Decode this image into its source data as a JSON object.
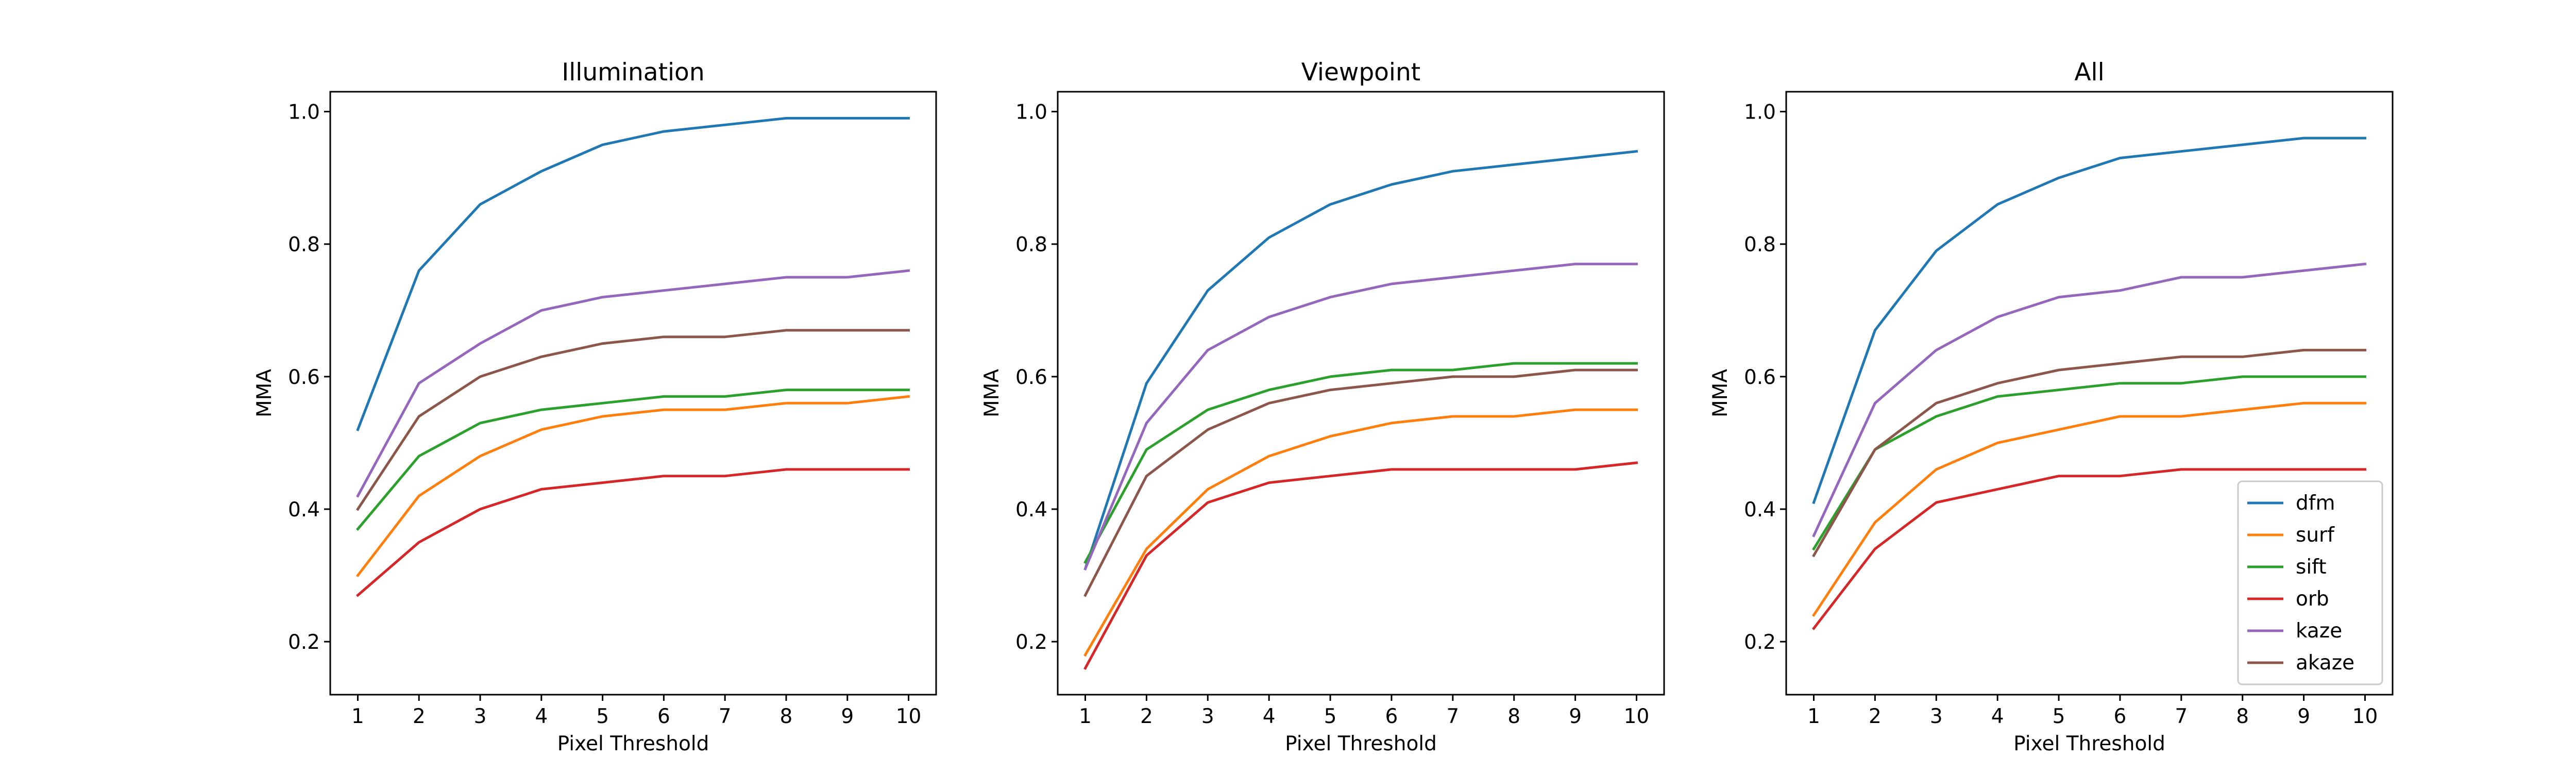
{
  "chart_data": [
    {
      "type": "line",
      "title": "Illumination",
      "xlabel": "Pixel Threshold",
      "ylabel": "MMA",
      "x": [
        1,
        2,
        3,
        4,
        5,
        6,
        7,
        8,
        9,
        10
      ],
      "xticks": [
        1,
        2,
        3,
        4,
        5,
        6,
        7,
        8,
        9,
        10
      ],
      "yticks": [
        "0.2",
        "0.4",
        "0.6",
        "0.8",
        "1.0"
      ],
      "xlim": [
        0.55,
        10.45
      ],
      "ylim": [
        0.12,
        1.03
      ],
      "grid": false,
      "series": [
        {
          "name": "dfm",
          "color": "#1f77b4",
          "values": [
            0.52,
            0.76,
            0.86,
            0.91,
            0.95,
            0.97,
            0.98,
            0.99,
            0.99,
            0.99
          ]
        },
        {
          "name": "surf",
          "color": "#ff7f0e",
          "values": [
            0.3,
            0.42,
            0.48,
            0.52,
            0.54,
            0.55,
            0.55,
            0.56,
            0.56,
            0.57
          ]
        },
        {
          "name": "sift",
          "color": "#2ca02c",
          "values": [
            0.37,
            0.48,
            0.53,
            0.55,
            0.56,
            0.57,
            0.57,
            0.58,
            0.58,
            0.58
          ]
        },
        {
          "name": "orb",
          "color": "#d62728",
          "values": [
            0.27,
            0.35,
            0.4,
            0.43,
            0.44,
            0.45,
            0.45,
            0.46,
            0.46,
            0.46
          ]
        },
        {
          "name": "kaze",
          "color": "#9467bd",
          "values": [
            0.42,
            0.59,
            0.65,
            0.7,
            0.72,
            0.73,
            0.74,
            0.75,
            0.75,
            0.76
          ]
        },
        {
          "name": "akaze",
          "color": "#8c564b",
          "values": [
            0.4,
            0.54,
            0.6,
            0.63,
            0.65,
            0.66,
            0.66,
            0.67,
            0.67,
            0.67
          ]
        }
      ]
    },
    {
      "type": "line",
      "title": "Viewpoint",
      "xlabel": "Pixel Threshold",
      "ylabel": "MMA",
      "x": [
        1,
        2,
        3,
        4,
        5,
        6,
        7,
        8,
        9,
        10
      ],
      "xticks": [
        1,
        2,
        3,
        4,
        5,
        6,
        7,
        8,
        9,
        10
      ],
      "yticks": [
        "0.2",
        "0.4",
        "0.6",
        "0.8",
        "1.0"
      ],
      "xlim": [
        0.55,
        10.45
      ],
      "ylim": [
        0.12,
        1.03
      ],
      "grid": false,
      "series": [
        {
          "name": "dfm",
          "color": "#1f77b4",
          "values": [
            0.31,
            0.59,
            0.73,
            0.81,
            0.86,
            0.89,
            0.91,
            0.92,
            0.93,
            0.94
          ]
        },
        {
          "name": "surf",
          "color": "#ff7f0e",
          "values": [
            0.18,
            0.34,
            0.43,
            0.48,
            0.51,
            0.53,
            0.54,
            0.54,
            0.55,
            0.55
          ]
        },
        {
          "name": "sift",
          "color": "#2ca02c",
          "values": [
            0.32,
            0.49,
            0.55,
            0.58,
            0.6,
            0.61,
            0.61,
            0.62,
            0.62,
            0.62
          ]
        },
        {
          "name": "orb",
          "color": "#d62728",
          "values": [
            0.16,
            0.33,
            0.41,
            0.44,
            0.45,
            0.46,
            0.46,
            0.46,
            0.46,
            0.47
          ]
        },
        {
          "name": "kaze",
          "color": "#9467bd",
          "values": [
            0.31,
            0.53,
            0.64,
            0.69,
            0.72,
            0.74,
            0.75,
            0.76,
            0.77,
            0.77
          ]
        },
        {
          "name": "akaze",
          "color": "#8c564b",
          "values": [
            0.27,
            0.45,
            0.52,
            0.56,
            0.58,
            0.59,
            0.6,
            0.6,
            0.61,
            0.61
          ]
        }
      ]
    },
    {
      "type": "line",
      "title": "All",
      "xlabel": "Pixel Threshold",
      "ylabel": "MMA",
      "x": [
        1,
        2,
        3,
        4,
        5,
        6,
        7,
        8,
        9,
        10
      ],
      "xticks": [
        1,
        2,
        3,
        4,
        5,
        6,
        7,
        8,
        9,
        10
      ],
      "yticks": [
        "0.2",
        "0.4",
        "0.6",
        "0.8",
        "1.0"
      ],
      "xlim": [
        0.55,
        10.45
      ],
      "ylim": [
        0.12,
        1.03
      ],
      "grid": false,
      "legend": "lower-right",
      "series": [
        {
          "name": "dfm",
          "color": "#1f77b4",
          "values": [
            0.41,
            0.67,
            0.79,
            0.86,
            0.9,
            0.93,
            0.94,
            0.95,
            0.96,
            0.96
          ]
        },
        {
          "name": "surf",
          "color": "#ff7f0e",
          "values": [
            0.24,
            0.38,
            0.46,
            0.5,
            0.52,
            0.54,
            0.54,
            0.55,
            0.56,
            0.56
          ]
        },
        {
          "name": "sift",
          "color": "#2ca02c",
          "values": [
            0.34,
            0.49,
            0.54,
            0.57,
            0.58,
            0.59,
            0.59,
            0.6,
            0.6,
            0.6
          ]
        },
        {
          "name": "orb",
          "color": "#d62728",
          "values": [
            0.22,
            0.34,
            0.41,
            0.43,
            0.45,
            0.45,
            0.46,
            0.46,
            0.46,
            0.46
          ]
        },
        {
          "name": "kaze",
          "color": "#9467bd",
          "values": [
            0.36,
            0.56,
            0.64,
            0.69,
            0.72,
            0.73,
            0.75,
            0.75,
            0.76,
            0.77
          ]
        },
        {
          "name": "akaze",
          "color": "#8c564b",
          "values": [
            0.33,
            0.49,
            0.56,
            0.59,
            0.61,
            0.62,
            0.63,
            0.63,
            0.64,
            0.64
          ]
        }
      ]
    }
  ]
}
